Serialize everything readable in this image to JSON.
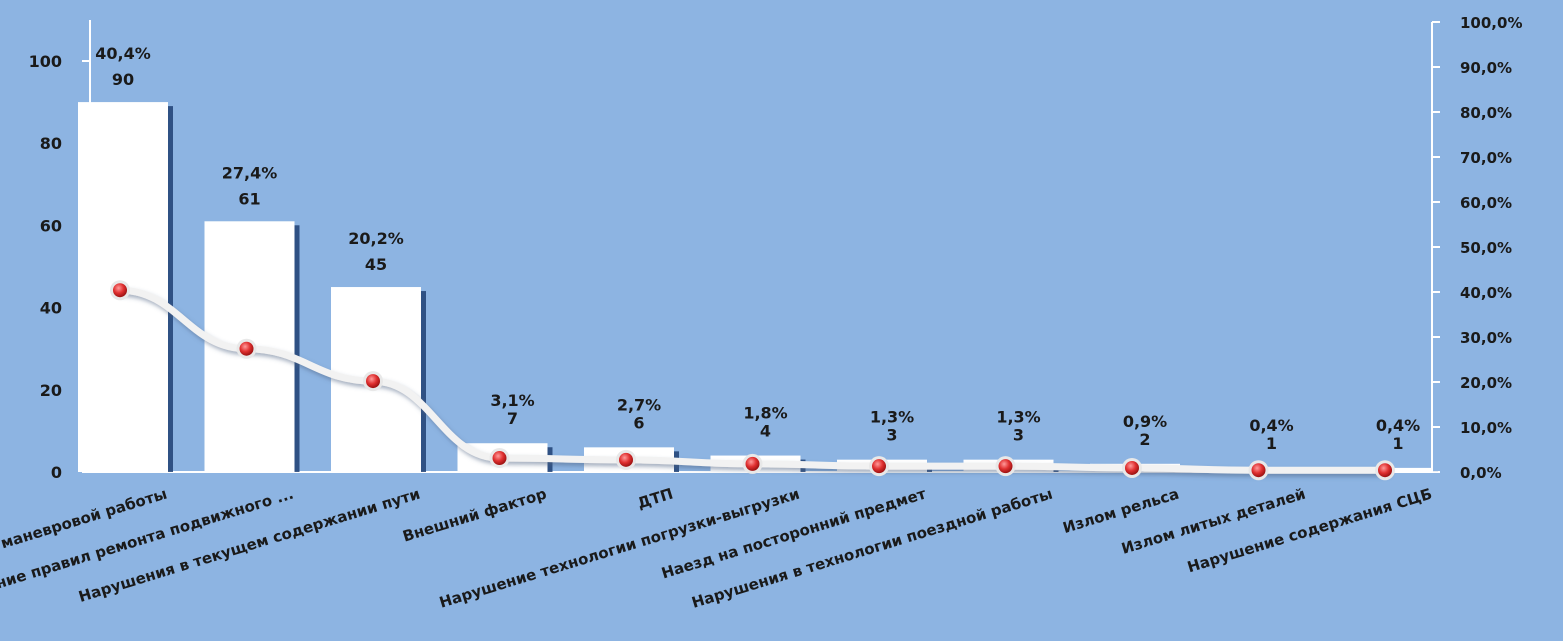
{
  "chart_data": {
    "type": "bar",
    "title": "",
    "xlabel": "",
    "ylabel": "",
    "categories": [
      "Нарушение поездной и маневровой работы",
      "Нарушение правил ремонта подвижного ...",
      "Нарушения в текущем содержании пути",
      "Внешний фактор",
      "ДТП",
      "Нарушение технологии погрузки-выгрузки",
      "Наезд на посторонний предмет",
      "Нарушения в технологии поездной работы",
      "Излом рельса",
      "Излом литых деталей",
      "Нарушение содержания СЦБ"
    ],
    "series": [
      {
        "type": "bar",
        "axis": "left",
        "values": [
          90,
          61,
          45,
          7,
          6,
          4,
          3,
          3,
          2,
          1,
          1
        ],
        "labels": [
          "90",
          "61",
          "45",
          "7",
          "6",
          "4",
          "3",
          "3",
          "2",
          "1",
          "1"
        ]
      },
      {
        "type": "line",
        "axis": "right",
        "values": [
          40.4,
          27.4,
          20.2,
          3.1,
          2.7,
          1.8,
          1.3,
          1.3,
          0.9,
          0.4,
          0.4
        ],
        "labels": [
          "40,4%",
          "27,4%",
          "20,2%",
          "3,1%",
          "2,7%",
          "1,8%",
          "1,3%",
          "1,3%",
          "0,9%",
          "0,4%",
          "0,4%"
        ]
      }
    ],
    "ylim": [
      0,
      110
    ],
    "y_ticks": [
      0,
      20,
      40,
      60,
      80,
      100
    ],
    "y_tick_labels": [
      "0",
      "20",
      "40",
      "60",
      "80",
      "100"
    ],
    "y2lim": [
      0,
      100
    ],
    "y2_ticks": [
      0,
      10,
      20,
      30,
      40,
      50,
      60,
      70,
      80,
      90,
      100
    ],
    "y2_tick_labels": [
      "0,0%",
      "10,0%",
      "20,0%",
      "30,0%",
      "40,0%",
      "50,0%",
      "60,0%",
      "70,0%",
      "80,0%",
      "90,0%",
      "100,0%"
    ],
    "grid": false,
    "legend": "none",
    "colors": {
      "background": "#8db4e2",
      "bar": "#ffffff",
      "bar_shadow": "#1f3f73",
      "line": "#f2f2f2",
      "marker": "#d62b2b"
    }
  }
}
